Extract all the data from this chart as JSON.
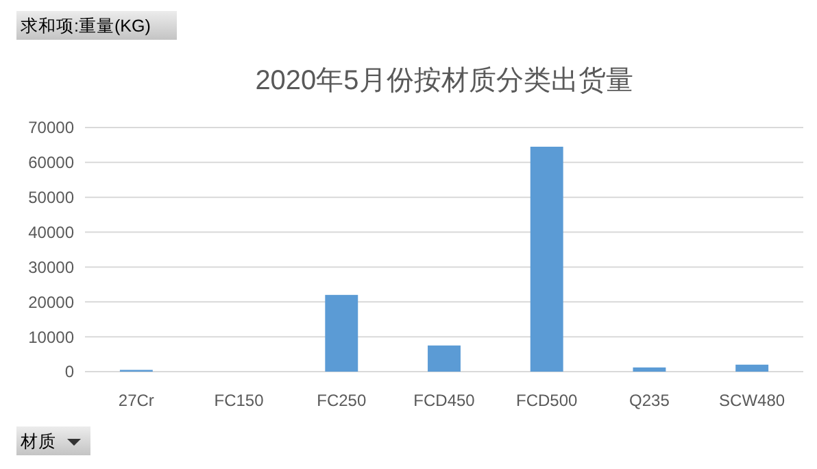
{
  "chart_data": {
    "type": "bar",
    "title": "2020年5月份按材质分类出货量",
    "ylabel": "求和项:重量(KG)",
    "xlabel": "材质",
    "categories": [
      "27Cr",
      "FC150",
      "FC250",
      "FCD450",
      "FCD500",
      "Q235",
      "SCW480"
    ],
    "values": [
      500,
      0,
      22000,
      7500,
      64500,
      1200,
      2000
    ],
    "color": "#5b9bd5",
    "ylim": [
      0,
      70000
    ],
    "yticks": [
      0,
      10000,
      20000,
      30000,
      40000,
      50000,
      60000,
      70000
    ],
    "grid": "y"
  }
}
